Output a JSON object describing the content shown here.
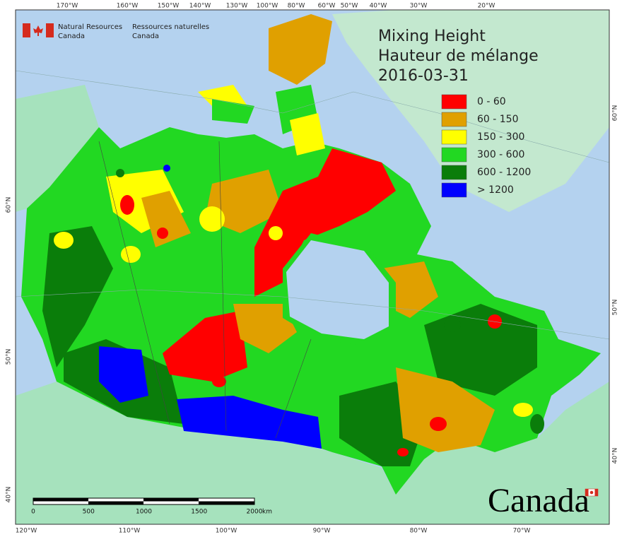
{
  "header": {
    "agency_en": [
      "Natural Resources",
      "Canada"
    ],
    "agency_fr": [
      "Ressources naturelles",
      "Canada"
    ]
  },
  "title": [
    "Mixing Height",
    "Hauteur de mélange",
    "2016-03-31"
  ],
  "legend": [
    {
      "label": "0 - 60",
      "color": "#ff0000"
    },
    {
      "label": "60 - 150",
      "color": "#e0a000"
    },
    {
      "label": "150 - 300",
      "color": "#ffff00"
    },
    {
      "label": "300 - 600",
      "color": "#22d822"
    },
    {
      "label": "600 - 1200",
      "color": "#0a7d0a"
    },
    {
      "label": "> 1200",
      "color": "#0000ff"
    }
  ],
  "graticule": {
    "top": [
      "170°W",
      "160°W",
      "150°W",
      "140°W",
      "130°W",
      "100°W",
      "80°W",
      "60°W",
      "50°W",
      "40°W",
      "30°W",
      "20°W"
    ],
    "bottom": [
      "120°W",
      "110°W",
      "100°W",
      "90°W",
      "80°W",
      "70°W"
    ],
    "left": [
      "60°N",
      "50°N",
      "40°N"
    ],
    "right": [
      "60°N",
      "50°N",
      "40°N"
    ]
  },
  "scale_bar": {
    "ticks": [
      0,
      500,
      1000,
      1500,
      2000
    ],
    "unit": "km"
  },
  "wordmark": "Canada"
}
